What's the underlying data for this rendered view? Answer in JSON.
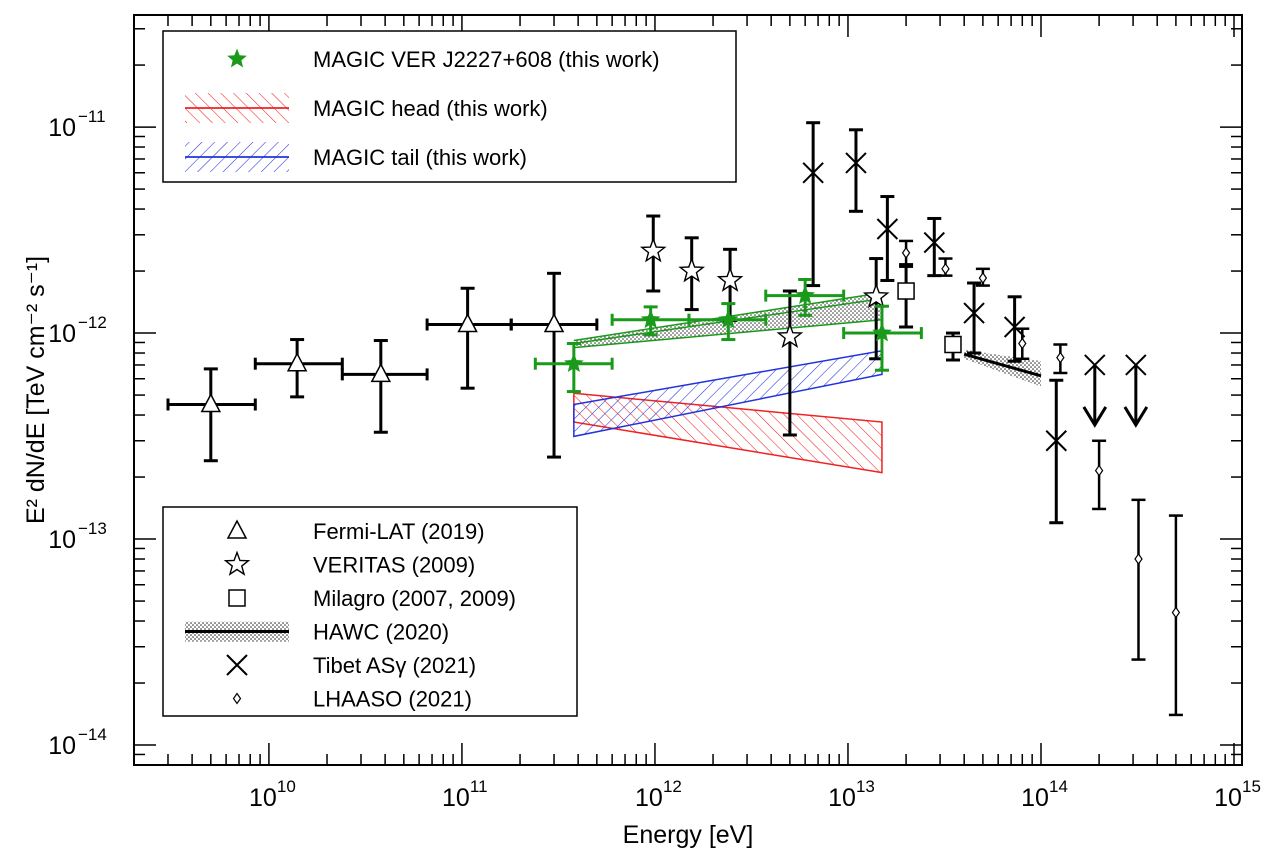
{
  "chart_data": {
    "type": "scatter",
    "title": "",
    "xlabel": "Energy [eV]",
    "ylabel": "E² dN/dE [TeV cm⁻² s⁻¹]",
    "xlim": [
      2000000000.0,
      1100000000000000.0
    ],
    "ylim": [
      8e-15,
      3.5e-11
    ],
    "log_x": true,
    "log_y": true,
    "grid": false,
    "x_ticks": [
      {
        "v": 10000000000.0,
        "base": "10",
        "exp": "10"
      },
      {
        "v": 100000000000.0,
        "base": "10",
        "exp": "11"
      },
      {
        "v": 1000000000000.0,
        "base": "10",
        "exp": "12"
      },
      {
        "v": 10000000000000.0,
        "base": "10",
        "exp": "13"
      },
      {
        "v": 100000000000000.0,
        "base": "10",
        "exp": "14"
      },
      {
        "v": 1000000000000000.0,
        "base": "10",
        "exp": "15"
      }
    ],
    "y_ticks": [
      {
        "v": 1e-14,
        "base": "10",
        "exp": "−14"
      },
      {
        "v": 1e-13,
        "base": "10",
        "exp": "−13"
      },
      {
        "v": 1e-12,
        "base": "10",
        "exp": "−12"
      },
      {
        "v": 1e-11,
        "base": "10",
        "exp": "−11"
      }
    ],
    "legend_top": {
      "placement": "top-left",
      "entries": [
        {
          "label": "MAGIC VER J2227+608 (this work)",
          "marker": "filled-star",
          "color": "#1a9a1a"
        },
        {
          "label": "MAGIC head (this work)",
          "marker": "hatched-band",
          "color": "#ee2222"
        },
        {
          "label": "MAGIC tail (this work)",
          "marker": "hatched-band",
          "color": "#2233dd"
        }
      ]
    },
    "legend_bottom": {
      "placement": "bottom-left",
      "entries": [
        {
          "label": "Fermi-LAT (2019)",
          "marker": "open-triangle"
        },
        {
          "label": "VERITAS (2009)",
          "marker": "open-star"
        },
        {
          "label": "Milagro (2007, 2009)",
          "marker": "open-square"
        },
        {
          "label": "HAWC (2020)",
          "marker": "dotted-band"
        },
        {
          "label": "Tibet ASγ (2021)",
          "marker": "cross"
        },
        {
          "label": "LHAASO (2021)",
          "marker": "open-diamond"
        }
      ]
    },
    "series": [
      {
        "key": "fermi",
        "marker": "open-triangle",
        "color": "#000000",
        "points": [
          {
            "x": 5000000000.0,
            "y": 4.5e-13,
            "xlo": 3000000000.0,
            "xhi": 8500000000.0,
            "ylo": 2.4e-13,
            "yhi": 6.7e-13
          },
          {
            "x": 14000000000.0,
            "y": 7.1e-13,
            "xlo": 8500000000.0,
            "xhi": 24000000000.0,
            "ylo": 4.9e-13,
            "yhi": 9.3e-13
          },
          {
            "x": 38000000000.0,
            "y": 6.3e-13,
            "xlo": 24000000000.0,
            "xhi": 66000000000.0,
            "ylo": 3.3e-13,
            "yhi": 9.2e-13
          },
          {
            "x": 107000000000.0,
            "y": 1.1e-12,
            "xlo": 66000000000.0,
            "xhi": 180000000000.0,
            "ylo": 5.4e-13,
            "yhi": 1.65e-12
          },
          {
            "x": 300000000000.0,
            "y": 1.1e-12,
            "xlo": 180000000000.0,
            "xhi": 500000000000.0,
            "ylo": 2.5e-13,
            "yhi": 1.95e-12
          }
        ]
      },
      {
        "key": "veritas",
        "marker": "open-star",
        "color": "#000000",
        "points": [
          {
            "x": 980000000000.0,
            "y": 2.5e-12,
            "ylo": 1.6e-12,
            "yhi": 3.7e-12
          },
          {
            "x": 1550000000000.0,
            "y": 2e-12,
            "ylo": 1.3e-12,
            "yhi": 2.9e-12
          },
          {
            "x": 2450000000000.0,
            "y": 1.8e-12,
            "ylo": 1.15e-12,
            "yhi": 2.55e-12
          },
          {
            "x": 5000000000000.0,
            "y": 9.6e-13,
            "ylo": 3.2e-13,
            "yhi": 1.6e-12
          },
          {
            "x": 14000000000000.0,
            "y": 1.5e-12,
            "ylo": 7.5e-13,
            "yhi": 2.3e-12
          }
        ]
      },
      {
        "key": "milagro",
        "marker": "open-square",
        "color": "#000000",
        "points": [
          {
            "x": 20000000000000.0,
            "y": 1.6e-12,
            "ylo": 1.07e-12,
            "yhi": 2.15e-12
          },
          {
            "x": 35000000000000.0,
            "y": 8.8e-13,
            "ylo": 7.4e-13,
            "yhi": 1e-12
          }
        ]
      },
      {
        "key": "tibet",
        "marker": "cross",
        "color": "#000000",
        "points": [
          {
            "x": 6600000000000.0,
            "y": 6e-12,
            "ylo": 1.7e-12,
            "yhi": 1.05e-11
          },
          {
            "x": 11000000000000.0,
            "y": 6.7e-12,
            "ylo": 3.9e-12,
            "yhi": 9.7e-12
          },
          {
            "x": 16000000000000.0,
            "y": 3.2e-12,
            "ylo": 1.8e-12,
            "yhi": 4.6e-12
          },
          {
            "x": 28000000000000.0,
            "y": 2.75e-12,
            "ylo": 1.9e-12,
            "yhi": 3.6e-12
          },
          {
            "x": 45000000000000.0,
            "y": 1.25e-12,
            "ylo": 8e-13,
            "yhi": 1.75e-12
          },
          {
            "x": 73000000000000.0,
            "y": 1.07e-12,
            "ylo": 7.3e-13,
            "yhi": 1.5e-12
          },
          {
            "x": 120000000000000.0,
            "y": 3e-13,
            "ylo": 1.2e-13,
            "yhi": 5.9e-13
          },
          {
            "x": 190000000000000.0,
            "y": 7e-13,
            "upper_limit": true
          },
          {
            "x": 310000000000000.0,
            "y": 7e-13,
            "upper_limit": true
          }
        ]
      },
      {
        "key": "lhaaso",
        "marker": "open-diamond",
        "color": "#000000",
        "points": [
          {
            "x": 20000000000000.0,
            "y": 2.45e-12,
            "ylo": 2.1e-12,
            "yhi": 2.8e-12
          },
          {
            "x": 32000000000000.0,
            "y": 2.05e-12,
            "ylo": 1.9e-12,
            "yhi": 2.3e-12
          },
          {
            "x": 50000000000000.0,
            "y": 1.85e-12,
            "ylo": 1.7e-12,
            "yhi": 2.05e-12
          },
          {
            "x": 80000000000000.0,
            "y": 8.9e-13,
            "ylo": 7.5e-13,
            "yhi": 1.05e-12
          },
          {
            "x": 126000000000000.0,
            "y": 7.6e-13,
            "ylo": 6.4e-13,
            "yhi": 8.8e-13
          },
          {
            "x": 200000000000000.0,
            "y": 2.15e-13,
            "ylo": 1.4e-13,
            "yhi": 3e-13
          },
          {
            "x": 320000000000000.0,
            "y": 8e-14,
            "ylo": 2.6e-14,
            "yhi": 1.55e-13
          },
          {
            "x": 500000000000000.0,
            "y": 4.4e-14,
            "ylo": 1.4e-14,
            "yhi": 1.3e-13
          }
        ]
      },
      {
        "key": "magic",
        "marker": "filled-star",
        "color": "#1a9a1a",
        "points": [
          {
            "x": 380000000000.0,
            "y": 7.1e-13,
            "xlo": 240000000000.0,
            "xhi": 600000000000.0,
            "ylo": 5.2e-13,
            "yhi": 8.9e-13
          },
          {
            "x": 950000000000.0,
            "y": 1.16e-12,
            "xlo": 600000000000.0,
            "xhi": 1500000000000.0,
            "ylo": 9.8e-13,
            "yhi": 1.34e-12
          },
          {
            "x": 2400000000000.0,
            "y": 1.16e-12,
            "xlo": 1500000000000.0,
            "xhi": 3750000000000.0,
            "ylo": 9.3e-13,
            "yhi": 1.39e-12
          },
          {
            "x": 6000000000000.0,
            "y": 1.52e-12,
            "xlo": 3750000000000.0,
            "xhi": 9500000000000.0,
            "ylo": 1.22e-12,
            "yhi": 1.82e-12
          },
          {
            "x": 15000000000000.0,
            "y": 1e-12,
            "xlo": 9500000000000.0,
            "xhi": 24000000000000.0,
            "ylo": 6.6e-13,
            "yhi": 1.35e-12
          }
        ]
      }
    ],
    "bands": [
      {
        "key": "magic-green-band",
        "style": "dotted",
        "color": "#1a9a1a",
        "x": [
          380000000000.0,
          15000000000000.0
        ],
        "upper": [
          9.2e-13,
          1.57e-12
        ],
        "lower": [
          8.5e-13,
          1.16e-12
        ],
        "line": [
          8.9e-13,
          1.47e-12
        ]
      },
      {
        "key": "magic-head",
        "style": "hatch-back",
        "color": "#ee2222",
        "x": [
          380000000000.0,
          15000000000000.0
        ],
        "upper": [
          5.1e-13,
          3.7e-13
        ],
        "lower": [
          3.7e-13,
          2.1e-13
        ]
      },
      {
        "key": "magic-tail",
        "style": "hatch-fwd",
        "color": "#2233dd",
        "x": [
          380000000000.0,
          15000000000000.0
        ],
        "upper": [
          4.5e-13,
          8.2e-13
        ],
        "lower": [
          3.15e-13,
          6.3e-13
        ]
      },
      {
        "key": "hawc",
        "style": "dotted",
        "color": "#000000",
        "x": [
          40000000000000.0,
          100000000000000.0
        ],
        "upper": [
          8.3e-13,
          7.3e-13
        ],
        "lower": [
          7.5e-13,
          5.5e-13
        ],
        "line": [
          7.9e-13,
          6.2e-13
        ]
      }
    ]
  }
}
